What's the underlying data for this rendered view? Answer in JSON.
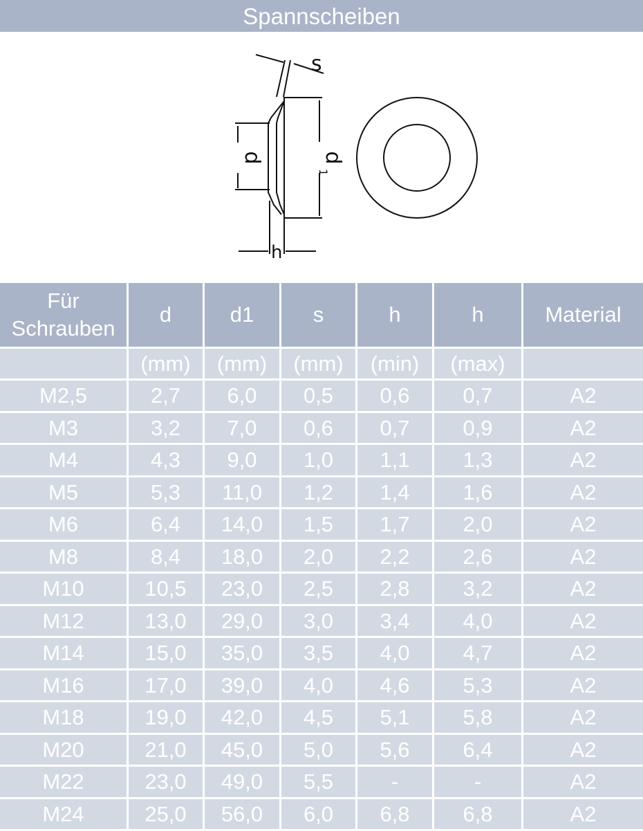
{
  "title": "Spannscheiben",
  "drawing": {
    "labels": {
      "s": "s",
      "d": "d",
      "d1": "d",
      "d1_sub": "1",
      "h": "h"
    }
  },
  "table": {
    "headers": [
      "Für Schrauben",
      "d",
      "d1",
      "s",
      "h",
      "h",
      "Material"
    ],
    "units": [
      "",
      "(mm)",
      "(mm)",
      "(mm)",
      "(min)",
      "(max)",
      ""
    ],
    "rows": [
      [
        "M2,5",
        "2,7",
        "6,0",
        "0,5",
        "0,6",
        "0,7",
        "A2"
      ],
      [
        "M3",
        "3,2",
        "7,0",
        "0,6",
        "0,7",
        "0,9",
        "A2"
      ],
      [
        "M4",
        "4,3",
        "9,0",
        "1,0",
        "1,1",
        "1,3",
        "A2"
      ],
      [
        "M5",
        "5,3",
        "11,0",
        "1,2",
        "1,4",
        "1,6",
        "A2"
      ],
      [
        "M6",
        "6,4",
        "14,0",
        "1,5",
        "1,7",
        "2,0",
        "A2"
      ],
      [
        "M8",
        "8,4",
        "18,0",
        "2,0",
        "2,2",
        "2,6",
        "A2"
      ],
      [
        "M10",
        "10,5",
        "23,0",
        "2,5",
        "2,8",
        "3,2",
        "A2"
      ],
      [
        "M12",
        "13,0",
        "29,0",
        "3,0",
        "3,4",
        "4,0",
        "A2"
      ],
      [
        "M14",
        "15,0",
        "35,0",
        "3,5",
        "4,0",
        "4,7",
        "A2"
      ],
      [
        "M16",
        "17,0",
        "39,0",
        "4,0",
        "4,6",
        "5,3",
        "A2"
      ],
      [
        "M18",
        "19,0",
        "42,0",
        "4,5",
        "5,1",
        "5,8",
        "A2"
      ],
      [
        "M20",
        "21,0",
        "45,0",
        "5,0",
        "5,6",
        "6,4",
        "A2"
      ],
      [
        "M22",
        "23,0",
        "49,0",
        "5,5",
        "-",
        "-",
        "A2"
      ],
      [
        "M24",
        "25,0",
        "56,0",
        "6,0",
        "6,8",
        "6,8",
        "A2"
      ]
    ]
  },
  "colors": {
    "header": "#a9b4c8",
    "cell": "#d3d9e3",
    "text": "#ffffff"
  }
}
